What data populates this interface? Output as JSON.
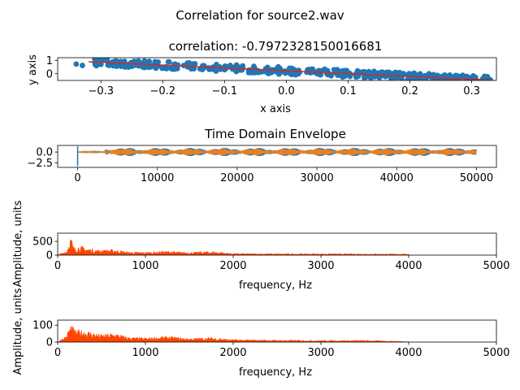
{
  "figure": {
    "suptitle": "Correlation for source2.wav"
  },
  "colors": {
    "scatter": "#1f77b4",
    "fit_line": "#d62728",
    "envelope_a": "#1f77b4",
    "envelope_b": "#ff7f0e",
    "spectrum": "#ff4500"
  },
  "chart_data": [
    {
      "type": "scatter",
      "title": "correlation: -0.7972328150016681",
      "xlabel": "x axis",
      "ylabel": "y axis",
      "xlim": [
        -0.37,
        0.34
      ],
      "ylim": [
        -0.5,
        1.2
      ],
      "xticks": [
        -0.3,
        -0.2,
        -0.1,
        0.0,
        0.1,
        0.2,
        0.3
      ],
      "xtick_labels": [
        "−0.3",
        "−0.2",
        "−0.1",
        "0.0",
        "0.1",
        "0.2",
        "0.3"
      ],
      "yticks": [
        1,
        0
      ],
      "ytick_labels": [
        "1",
        "0"
      ],
      "points_sample": [
        [
          -0.34,
          0.72
        ],
        [
          -0.33,
          0.62
        ],
        [
          -0.31,
          0.85
        ],
        [
          -0.3,
          0.7
        ],
        [
          -0.28,
          0.6
        ],
        [
          -0.25,
          0.55
        ],
        [
          -0.22,
          0.5
        ],
        [
          -0.2,
          0.45
        ],
        [
          -0.15,
          0.38
        ],
        [
          -0.1,
          0.3
        ],
        [
          -0.05,
          0.2
        ],
        [
          0.0,
          0.1
        ],
        [
          0.05,
          0.0
        ],
        [
          0.1,
          -0.08
        ],
        [
          0.15,
          -0.15
        ],
        [
          0.2,
          -0.22
        ],
        [
          0.25,
          -0.3
        ],
        [
          0.3,
          -0.38
        ],
        [
          0.32,
          -0.42
        ],
        [
          0.33,
          -0.45
        ]
      ],
      "fit_line": {
        "x": [
          -0.32,
          0.33
        ],
        "y": [
          0.9,
          -0.48
        ]
      },
      "grid": false
    },
    {
      "type": "line",
      "title": "Time Domain Envelope",
      "xlim": [
        -2500,
        52500
      ],
      "ylim": [
        -3.5,
        1.5
      ],
      "xticks": [
        0,
        10000,
        20000,
        30000,
        40000,
        50000
      ],
      "xtick_labels": [
        "0",
        "10000",
        "20000",
        "30000",
        "40000",
        "50000"
      ],
      "yticks": [
        0.0,
        -2.5
      ],
      "ytick_labels": [
        "0.0",
        "−2.5"
      ],
      "sample_count": 50000,
      "series": [
        {
          "color_key": "envelope_a",
          "amplitude_range": [
            -0.9,
            0.9
          ]
        },
        {
          "color_key": "envelope_b",
          "amplitude_range": [
            -0.7,
            0.7
          ]
        }
      ],
      "grid": false
    },
    {
      "type": "area",
      "xlabel": "frequency, Hz",
      "ylabel": "Amplitude, units",
      "xlim": [
        0,
        5000
      ],
      "ylim": [
        0,
        800
      ],
      "xticks": [
        0,
        1000,
        2000,
        3000,
        4000,
        5000
      ],
      "xtick_labels": [
        "0",
        "1000",
        "2000",
        "3000",
        "4000",
        "5000"
      ],
      "yticks": [
        500,
        0
      ],
      "ytick_labels": [
        "500",
        "0"
      ],
      "spectrum_peaks": [
        [
          0,
          0
        ],
        [
          50,
          80
        ],
        [
          100,
          150
        ],
        [
          150,
          720
        ],
        [
          180,
          300
        ],
        [
          250,
          350
        ],
        [
          350,
          250
        ],
        [
          450,
          200
        ],
        [
          650,
          210
        ],
        [
          800,
          120
        ],
        [
          1000,
          110
        ],
        [
          1250,
          150
        ],
        [
          1500,
          100
        ],
        [
          1750,
          140
        ],
        [
          2000,
          60
        ],
        [
          2500,
          50
        ],
        [
          3000,
          50
        ],
        [
          3500,
          45
        ],
        [
          4000,
          40
        ]
      ],
      "max_frequency": 4000,
      "grid": false
    },
    {
      "type": "area",
      "xlabel": "frequency, Hz",
      "ylabel": "Amplitude, units",
      "xlim": [
        0,
        5000
      ],
      "ylim": [
        0,
        130
      ],
      "xticks": [
        0,
        1000,
        2000,
        3000,
        4000,
        5000
      ],
      "xtick_labels": [
        "0",
        "1000",
        "2000",
        "3000",
        "4000",
        "5000"
      ],
      "yticks": [
        100,
        0
      ],
      "ytick_labels": [
        "100",
        "0"
      ],
      "spectrum_peaks": [
        [
          0,
          0
        ],
        [
          50,
          20
        ],
        [
          100,
          40
        ],
        [
          150,
          115
        ],
        [
          200,
          70
        ],
        [
          300,
          75
        ],
        [
          400,
          60
        ],
        [
          500,
          45
        ],
        [
          650,
          55
        ],
        [
          800,
          30
        ],
        [
          1000,
          25
        ],
        [
          1250,
          35
        ],
        [
          1500,
          22
        ],
        [
          1750,
          28
        ],
        [
          2000,
          15
        ],
        [
          2500,
          12
        ],
        [
          3000,
          10
        ],
        [
          3500,
          10
        ],
        [
          3800,
          6
        ],
        [
          4000,
          1
        ]
      ],
      "max_frequency": 4000,
      "grid": false
    }
  ]
}
